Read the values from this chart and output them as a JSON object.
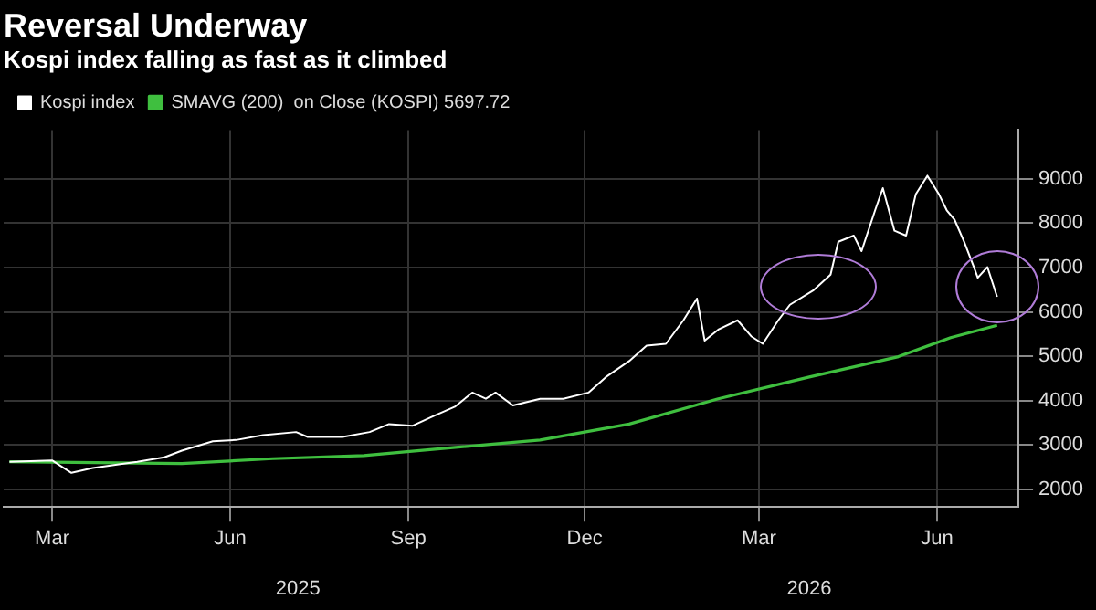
{
  "chart_data": {
    "type": "line",
    "title": "Reversal Underway",
    "subtitle": "Kospi index falling as fast as it climbed",
    "series": [
      {
        "name": "Kospi index",
        "color": "#ffffff",
        "x": [
          "2025-02-07",
          "2025-03-01",
          "2025-03-11",
          "2025-03-22",
          "2025-04-14",
          "2025-04-28",
          "2025-05-07",
          "2025-05-23",
          "2025-06-04",
          "2025-06-18",
          "2025-07-05",
          "2025-07-11",
          "2025-07-29",
          "2025-08-12",
          "2025-08-22",
          "2025-09-03",
          "2025-09-14",
          "2025-09-25",
          "2025-10-04",
          "2025-10-11",
          "2025-10-16",
          "2025-10-25",
          "2025-11-08",
          "2025-11-20",
          "2025-12-03",
          "2025-12-12",
          "2025-12-24",
          "2026-01-02",
          "2026-01-12",
          "2026-01-21",
          "2026-01-28",
          "2026-02-01",
          "2026-02-08",
          "2026-02-18",
          "2026-02-25",
          "2026-03-03",
          "2026-03-11",
          "2026-03-17",
          "2026-03-29",
          "2026-04-07",
          "2026-04-11",
          "2026-04-19",
          "2026-04-23",
          "2026-04-30",
          "2026-05-04",
          "2026-05-10",
          "2026-05-16",
          "2026-05-21",
          "2026-05-27",
          "2026-06-02",
          "2026-06-06",
          "2026-06-10",
          "2026-06-15",
          "2026-06-20",
          "2026-06-22",
          "2026-06-27",
          "2026-07-02"
        ],
        "values": [
          2620,
          2650,
          2370,
          2480,
          2620,
          2720,
          2870,
          3080,
          3110,
          3220,
          3290,
          3180,
          3180,
          3290,
          3470,
          3430,
          3650,
          3860,
          4180,
          4040,
          4180,
          3890,
          4040,
          4040,
          4180,
          4530,
          4890,
          5240,
          5280,
          5810,
          6300,
          5350,
          5600,
          5810,
          5450,
          5280,
          5810,
          6160,
          6480,
          6840,
          7580,
          7720,
          7370,
          8290,
          8790,
          7830,
          7720,
          8650,
          9070,
          8650,
          8290,
          8080,
          7580,
          7010,
          6770,
          7010,
          6340
        ]
      },
      {
        "name": "SMAVG (200)  on Close (KOSPI) 5697.72",
        "color": "#3fbf3f",
        "x": [
          "2025-02-07",
          "2025-05-07",
          "2025-06-23",
          "2025-08-09",
          "2025-09-24",
          "2025-11-08",
          "2025-12-24",
          "2026-02-08",
          "2026-03-27",
          "2026-05-12",
          "2026-06-08",
          "2026-07-02"
        ],
        "values": [
          2620,
          2580,
          2690,
          2760,
          2940,
          3110,
          3470,
          4040,
          4530,
          4990,
          5420,
          5697.72
        ]
      }
    ],
    "xlim": [
      "2025-02-04",
      "2026-07-13"
    ],
    "xticks": [
      {
        "value": "2025-03-01",
        "label": "Mar"
      },
      {
        "value": "2025-06-01",
        "label": "Jun"
      },
      {
        "value": "2025-09-01",
        "label": "Sep"
      },
      {
        "value": "2025-12-01",
        "label": "Dec"
      },
      {
        "value": "2026-03-01",
        "label": "Mar"
      },
      {
        "value": "2026-06-01",
        "label": "Jun"
      }
    ],
    "x2lim": [
      "2025-02-04",
      "2026-07-13"
    ],
    "x2ticks": [
      {
        "value": "2025-07-06",
        "label": "2025"
      },
      {
        "value": "2026-03-27",
        "label": "2026"
      }
    ],
    "ylim": [
      1600,
      10100
    ],
    "yticks": [
      2000,
      3000,
      4000,
      5000,
      6000,
      7000,
      8000,
      9000
    ],
    "grid": true,
    "legend": "top left"
  }
}
